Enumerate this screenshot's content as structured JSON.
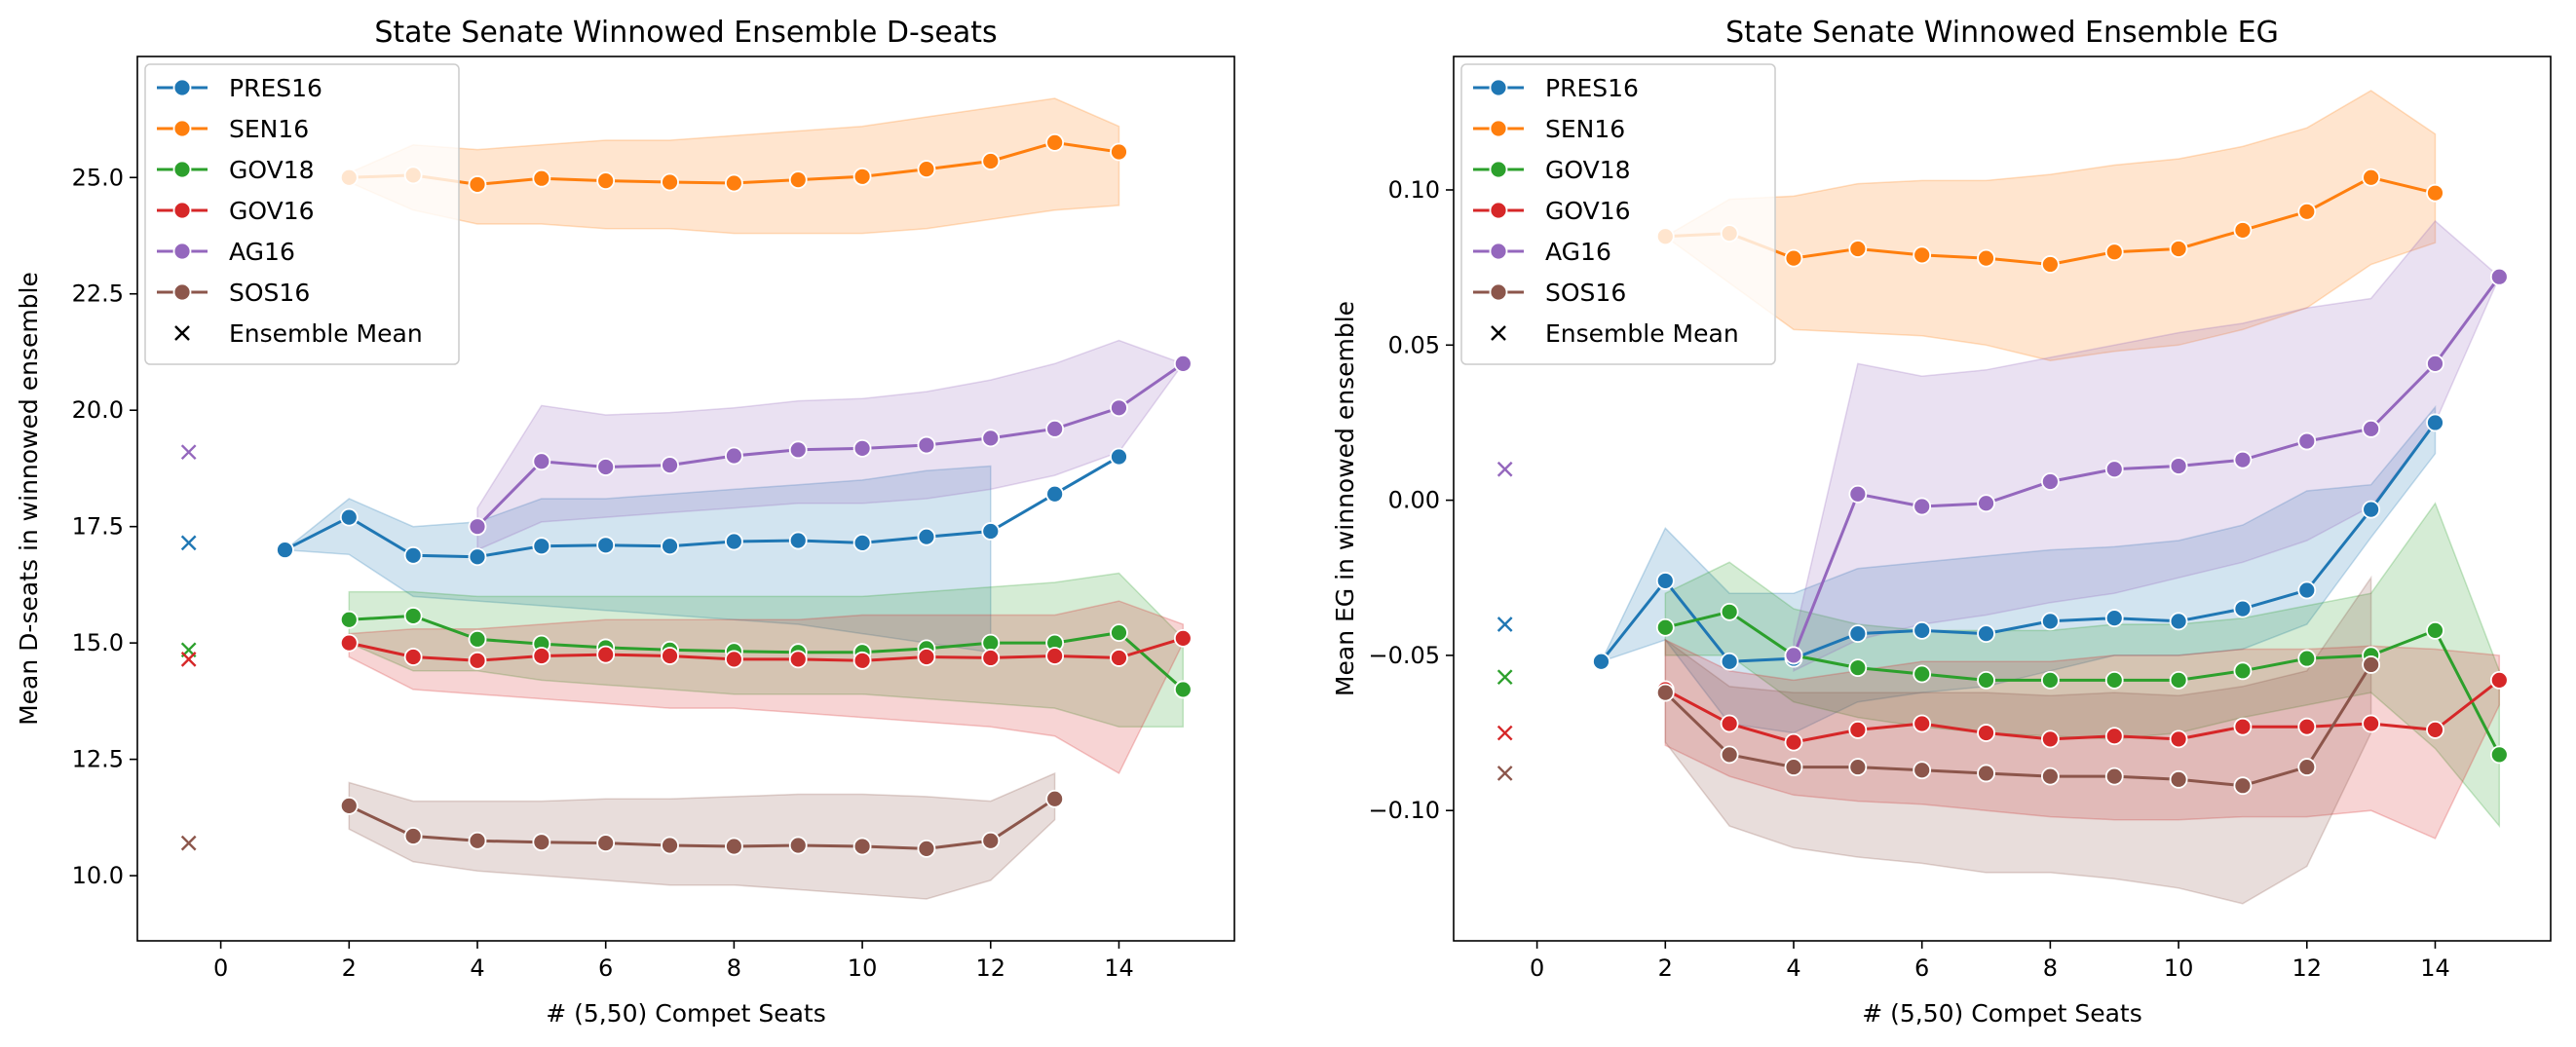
{
  "chart_data": [
    {
      "type": "line",
      "title": "State Senate Winnowed Ensemble D-seats",
      "xlabel": "# (5,50) Compet Seats",
      "ylabel": "Mean D-seats in winnowed ensemble",
      "xlim": [
        -1.3,
        15.8
      ],
      "ylim": [
        8.6,
        27.6
      ],
      "xticks": [
        0,
        2,
        4,
        6,
        8,
        10,
        12,
        14
      ],
      "xtick_labels": [
        "0",
        "2",
        "4",
        "6",
        "8",
        "10",
        "12",
        "14"
      ],
      "yticks": [
        10.0,
        12.5,
        15.0,
        17.5,
        20.0,
        22.5,
        25.0
      ],
      "ytick_labels": [
        "10.0",
        "12.5",
        "15.0",
        "17.5",
        "20.0",
        "22.5",
        "25.0"
      ],
      "legend_position": "upper-left",
      "ensemble_mean_label": "Ensemble Mean",
      "series": [
        {
          "name": "PRES16",
          "color": "#1f77b4",
          "x": [
            1,
            2,
            3,
            4,
            5,
            6,
            7,
            8,
            9,
            10,
            11,
            12,
            13,
            14
          ],
          "y": [
            17.0,
            17.7,
            16.88,
            16.85,
            17.08,
            17.1,
            17.08,
            17.18,
            17.2,
            17.15,
            17.28,
            17.4,
            18.2,
            19.0
          ],
          "lower": [
            17.0,
            16.9,
            16.0,
            15.9,
            15.8,
            15.7,
            15.6,
            15.5,
            15.4,
            15.2,
            15.0,
            14.8,
            null,
            null
          ],
          "upper": [
            17.0,
            18.1,
            17.5,
            17.6,
            18.1,
            18.1,
            18.2,
            18.3,
            18.4,
            18.5,
            18.7,
            18.8,
            null,
            null
          ],
          "ensemble_mean": 17.15
        },
        {
          "name": "SEN16",
          "color": "#ff7f0e",
          "x": [
            2,
            3,
            4,
            5,
            6,
            7,
            8,
            9,
            10,
            11,
            12,
            13,
            14
          ],
          "y": [
            25.0,
            25.05,
            24.85,
            24.98,
            24.93,
            24.9,
            24.88,
            24.95,
            25.02,
            25.18,
            25.35,
            25.75,
            25.55
          ],
          "lower": [
            24.9,
            24.3,
            24.0,
            24.0,
            23.9,
            23.9,
            23.8,
            23.8,
            23.8,
            23.9,
            24.1,
            24.3,
            24.4
          ],
          "upper": [
            25.1,
            25.7,
            25.6,
            25.7,
            25.8,
            25.8,
            25.9,
            26.0,
            26.1,
            26.3,
            26.5,
            26.7,
            26.1
          ],
          "ensemble_mean": null
        },
        {
          "name": "GOV18",
          "color": "#2ca02c",
          "x": [
            2,
            3,
            4,
            5,
            6,
            7,
            8,
            9,
            10,
            11,
            12,
            13,
            14,
            15
          ],
          "y": [
            15.5,
            15.58,
            15.08,
            14.98,
            14.9,
            14.85,
            14.82,
            14.8,
            14.8,
            14.88,
            15.0,
            15.0,
            15.22,
            14.0
          ],
          "lower": [
            15.0,
            14.4,
            14.4,
            14.2,
            14.1,
            14.0,
            13.9,
            13.9,
            13.9,
            13.8,
            13.7,
            13.6,
            13.2,
            13.2
          ],
          "upper": [
            16.1,
            16.1,
            16.0,
            16.0,
            16.0,
            16.0,
            16.0,
            16.0,
            16.0,
            16.1,
            16.2,
            16.3,
            16.5,
            15.1
          ],
          "ensemble_mean": 14.85
        },
        {
          "name": "GOV16",
          "color": "#d62728",
          "x": [
            2,
            3,
            4,
            5,
            6,
            7,
            8,
            9,
            10,
            11,
            12,
            13,
            14,
            15
          ],
          "y": [
            15.0,
            14.7,
            14.62,
            14.72,
            14.75,
            14.72,
            14.65,
            14.65,
            14.62,
            14.7,
            14.68,
            14.72,
            14.68,
            15.1
          ],
          "lower": [
            14.7,
            14.0,
            13.9,
            13.8,
            13.7,
            13.6,
            13.6,
            13.5,
            13.4,
            13.3,
            13.2,
            13.0,
            12.2,
            15.0
          ],
          "upper": [
            15.2,
            15.3,
            15.3,
            15.4,
            15.5,
            15.5,
            15.5,
            15.5,
            15.6,
            15.6,
            15.6,
            15.6,
            15.9,
            15.4
          ],
          "ensemble_mean": 14.65
        },
        {
          "name": "AG16",
          "color": "#9467bd",
          "x": [
            4,
            5,
            6,
            7,
            8,
            9,
            10,
            11,
            12,
            13,
            14,
            15
          ],
          "y": [
            17.5,
            18.9,
            18.78,
            18.82,
            19.02,
            19.15,
            19.18,
            19.25,
            19.4,
            19.6,
            20.05,
            21.0
          ],
          "lower": [
            17.0,
            17.6,
            17.7,
            17.8,
            17.9,
            18.0,
            18.0,
            18.1,
            18.3,
            18.6,
            19.1,
            21.0
          ],
          "upper": [
            17.9,
            20.1,
            19.9,
            19.95,
            20.05,
            20.2,
            20.25,
            20.4,
            20.65,
            21.0,
            21.5,
            21.0
          ],
          "ensemble_mean": 19.1
        },
        {
          "name": "SOS16",
          "color": "#8c564b",
          "x": [
            2,
            3,
            4,
            5,
            6,
            7,
            8,
            9,
            10,
            11,
            12,
            13
          ],
          "y": [
            11.5,
            10.85,
            10.75,
            10.72,
            10.7,
            10.65,
            10.63,
            10.65,
            10.63,
            10.58,
            10.75,
            11.65
          ],
          "lower": [
            11.0,
            10.3,
            10.1,
            10.0,
            9.9,
            9.8,
            9.8,
            9.7,
            9.6,
            9.5,
            9.9,
            11.2
          ],
          "upper": [
            12.0,
            11.6,
            11.6,
            11.6,
            11.65,
            11.65,
            11.7,
            11.75,
            11.75,
            11.7,
            11.6,
            12.2
          ],
          "ensemble_mean": 10.7
        }
      ]
    },
    {
      "type": "line",
      "title": "State Senate Winnowed Ensemble EG",
      "xlabel": "# (5,50) Compet Seats",
      "ylabel": "Mean EG in winnowed ensemble",
      "xlim": [
        -1.3,
        15.8
      ],
      "ylim": [
        -0.142,
        0.143
      ],
      "xticks": [
        0,
        2,
        4,
        6,
        8,
        10,
        12,
        14
      ],
      "xtick_labels": [
        "0",
        "2",
        "4",
        "6",
        "8",
        "10",
        "12",
        "14"
      ],
      "yticks": [
        -0.1,
        -0.05,
        0.0,
        0.05,
        0.1
      ],
      "ytick_labels": [
        "−0.10",
        "−0.05",
        "0.00",
        "0.05",
        "0.10"
      ],
      "legend_position": "upper-left",
      "ensemble_mean_label": "Ensemble Mean",
      "series": [
        {
          "name": "PRES16",
          "color": "#1f77b4",
          "x": [
            1,
            2,
            3,
            4,
            5,
            6,
            7,
            8,
            9,
            10,
            11,
            12,
            13,
            14
          ],
          "y": [
            -0.052,
            -0.026,
            -0.052,
            -0.051,
            -0.043,
            -0.042,
            -0.043,
            -0.039,
            -0.038,
            -0.039,
            -0.035,
            -0.029,
            -0.003,
            0.025
          ],
          "lower": [
            -0.052,
            -0.045,
            -0.072,
            -0.075,
            -0.065,
            -0.062,
            -0.06,
            -0.055,
            -0.05,
            -0.05,
            -0.048,
            -0.04,
            -0.012,
            0.015
          ],
          "upper": [
            -0.052,
            -0.009,
            -0.03,
            -0.03,
            -0.022,
            -0.02,
            -0.018,
            -0.016,
            -0.015,
            -0.013,
            -0.008,
            0.003,
            0.005,
            0.03
          ],
          "ensemble_mean": -0.04
        },
        {
          "name": "SEN16",
          "color": "#ff7f0e",
          "x": [
            2,
            3,
            4,
            5,
            6,
            7,
            8,
            9,
            10,
            11,
            12,
            13,
            14
          ],
          "y": [
            0.085,
            0.086,
            0.078,
            0.081,
            0.079,
            0.078,
            0.076,
            0.08,
            0.081,
            0.087,
            0.093,
            0.104,
            0.099
          ],
          "lower": [
            0.085,
            0.07,
            0.055,
            0.054,
            0.053,
            0.05,
            0.045,
            0.048,
            0.05,
            0.055,
            0.062,
            0.076,
            0.083
          ],
          "upper": [
            0.085,
            0.097,
            0.098,
            0.102,
            0.103,
            0.103,
            0.105,
            0.108,
            0.11,
            0.114,
            0.12,
            0.132,
            0.118
          ],
          "ensemble_mean": null
        },
        {
          "name": "GOV18",
          "color": "#2ca02c",
          "x": [
            2,
            3,
            4,
            5,
            6,
            7,
            8,
            9,
            10,
            11,
            12,
            13,
            14,
            15
          ],
          "y": [
            -0.041,
            -0.036,
            -0.05,
            -0.054,
            -0.056,
            -0.058,
            -0.058,
            -0.058,
            -0.058,
            -0.055,
            -0.051,
            -0.05,
            -0.042,
            -0.082
          ],
          "lower": [
            -0.05,
            -0.05,
            -0.065,
            -0.07,
            -0.073,
            -0.075,
            -0.076,
            -0.077,
            -0.075,
            -0.07,
            -0.066,
            -0.062,
            -0.08,
            -0.105
          ],
          "upper": [
            -0.03,
            -0.02,
            -0.035,
            -0.04,
            -0.042,
            -0.042,
            -0.042,
            -0.04,
            -0.04,
            -0.038,
            -0.034,
            -0.03,
            -0.001,
            -0.055
          ],
          "ensemble_mean": -0.057
        },
        {
          "name": "GOV16",
          "color": "#d62728",
          "x": [
            2,
            3,
            4,
            5,
            6,
            7,
            8,
            9,
            10,
            11,
            12,
            13,
            14,
            15
          ],
          "y": [
            -0.061,
            -0.072,
            -0.078,
            -0.074,
            -0.072,
            -0.075,
            -0.077,
            -0.076,
            -0.077,
            -0.073,
            -0.073,
            -0.072,
            -0.074,
            -0.058
          ],
          "lower": [
            -0.079,
            -0.089,
            -0.095,
            -0.097,
            -0.098,
            -0.1,
            -0.102,
            -0.103,
            -0.103,
            -0.102,
            -0.102,
            -0.1,
            -0.109,
            -0.066
          ],
          "upper": [
            -0.045,
            -0.055,
            -0.058,
            -0.055,
            -0.052,
            -0.052,
            -0.052,
            -0.05,
            -0.05,
            -0.048,
            -0.048,
            -0.047,
            -0.048,
            -0.05
          ],
          "ensemble_mean": -0.075
        },
        {
          "name": "AG16",
          "color": "#9467bd",
          "x": [
            4,
            5,
            6,
            7,
            8,
            9,
            10,
            11,
            12,
            13,
            14,
            15
          ],
          "y": [
            -0.05,
            0.002,
            -0.002,
            -0.001,
            0.006,
            0.01,
            0.011,
            0.013,
            0.019,
            0.023,
            0.044,
            0.072
          ],
          "lower": [
            -0.055,
            -0.045,
            -0.04,
            -0.037,
            -0.033,
            -0.03,
            -0.025,
            -0.02,
            -0.013,
            -0.002,
            0.025,
            0.072
          ],
          "upper": [
            -0.045,
            0.044,
            0.04,
            0.042,
            0.046,
            0.05,
            0.054,
            0.057,
            0.062,
            0.065,
            0.09,
            0.072
          ],
          "ensemble_mean": 0.01
        },
        {
          "name": "SOS16",
          "color": "#8c564b",
          "x": [
            2,
            3,
            4,
            5,
            6,
            7,
            8,
            9,
            10,
            11,
            12,
            13
          ],
          "y": [
            -0.062,
            -0.082,
            -0.086,
            -0.086,
            -0.087,
            -0.088,
            -0.089,
            -0.089,
            -0.09,
            -0.092,
            -0.086,
            -0.053
          ],
          "lower": [
            -0.078,
            -0.105,
            -0.112,
            -0.115,
            -0.117,
            -0.12,
            -0.12,
            -0.122,
            -0.125,
            -0.13,
            -0.118,
            -0.075
          ],
          "upper": [
            -0.045,
            -0.06,
            -0.062,
            -0.062,
            -0.062,
            -0.062,
            -0.063,
            -0.062,
            -0.063,
            -0.06,
            -0.055,
            -0.025
          ],
          "ensemble_mean": -0.088
        }
      ]
    }
  ]
}
